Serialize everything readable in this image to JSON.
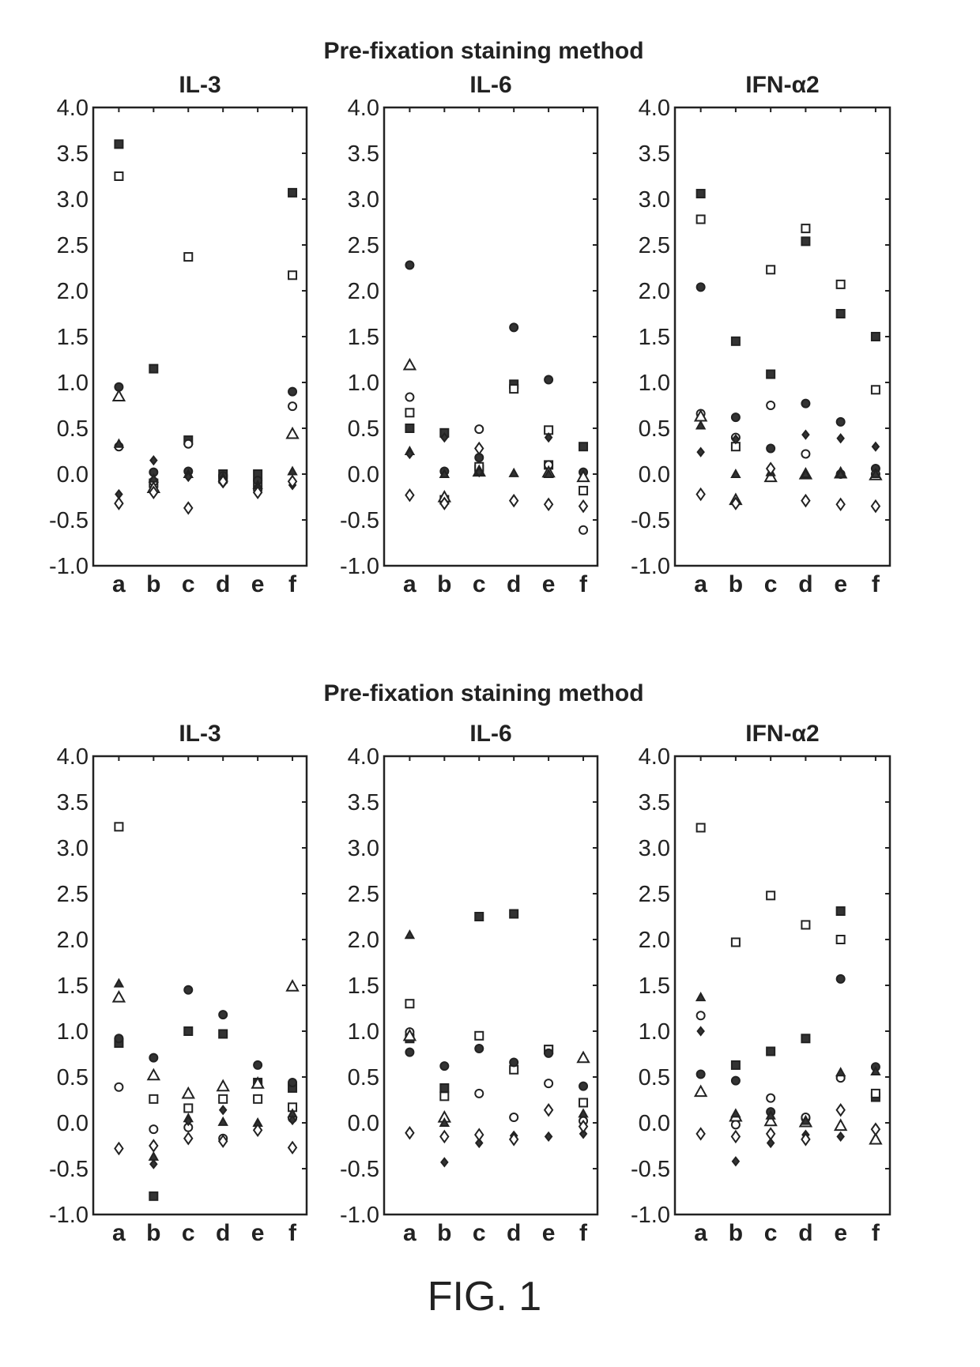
{
  "figure_label": "FIG. 1",
  "marker_legend": [
    "filled-square",
    "open-square",
    "filled-circle",
    "open-circle",
    "open-triangle",
    "filled-triangle",
    "filled-diamond",
    "open-diamond"
  ],
  "chart_data": [
    {
      "group_title": "Pre-fixation staining  method",
      "title": "IL-3",
      "type": "scatter",
      "categories": [
        "a",
        "b",
        "c",
        "d",
        "e",
        "f"
      ],
      "ylim": [
        -1.0,
        4.0
      ],
      "yticks": [
        "4.0",
        "3.5",
        "3.0",
        "2.5",
        "2.0",
        "1.5",
        "1.0",
        "0.5",
        "0.0",
        "-0.5",
        "-1.0"
      ],
      "series": [
        {
          "marker": "filled-square",
          "values": [
            3.6,
            1.15,
            0.37,
            0.0,
            0.0,
            3.07
          ]
        },
        {
          "marker": "open-square",
          "values": [
            3.25,
            -0.1,
            2.37,
            -0.05,
            -0.1,
            2.17
          ]
        },
        {
          "marker": "filled-circle",
          "values": [
            0.95,
            0.02,
            0.03,
            -0.02,
            -0.07,
            0.9
          ]
        },
        {
          "marker": "open-circle",
          "values": [
            0.3,
            -0.08,
            0.33,
            -0.07,
            -0.17,
            0.74
          ]
        },
        {
          "marker": "open-triangle",
          "values": [
            0.85,
            -0.15,
            null,
            null,
            null,
            0.44
          ]
        },
        {
          "marker": "filled-triangle",
          "values": [
            0.33,
            -0.05,
            0.0,
            -0.04,
            -0.12,
            0.03
          ]
        },
        {
          "marker": "filled-diamond",
          "values": [
            -0.22,
            0.15,
            -0.03,
            -0.1,
            -0.15,
            -0.12
          ]
        },
        {
          "marker": "open-diamond",
          "values": [
            -0.32,
            -0.2,
            -0.37,
            -0.08,
            -0.2,
            -0.08
          ]
        }
      ]
    },
    {
      "group_title": "Pre-fixation staining  method",
      "title": "IL-6",
      "type": "scatter",
      "categories": [
        "a",
        "b",
        "c",
        "d",
        "e",
        "f"
      ],
      "ylim": [
        -1.0,
        4.0
      ],
      "yticks": [
        "4.0",
        "3.5",
        "3.0",
        "2.5",
        "2.0",
        "1.5",
        "1.0",
        "0.5",
        "0.0",
        "-0.5",
        "-1.0"
      ],
      "series": [
        {
          "marker": "filled-square",
          "values": [
            0.5,
            0.45,
            0.05,
            0.98,
            0.1,
            0.3
          ]
        },
        {
          "marker": "open-square",
          "values": [
            0.67,
            -0.28,
            0.08,
            0.93,
            0.48,
            -0.18
          ]
        },
        {
          "marker": "filled-circle",
          "values": [
            2.28,
            0.03,
            0.18,
            1.6,
            1.03,
            0.02
          ]
        },
        {
          "marker": "open-circle",
          "values": [
            0.84,
            -0.3,
            0.49,
            null,
            0.1,
            -0.61
          ]
        },
        {
          "marker": "open-triangle",
          "values": [
            1.19,
            -0.25,
            0.03,
            null,
            0.02,
            -0.03
          ]
        },
        {
          "marker": "filled-triangle",
          "values": [
            0.25,
            0.0,
            0.02,
            0.01,
            0.0,
            null
          ]
        },
        {
          "marker": "filled-diamond",
          "values": [
            0.22,
            0.4,
            0.02,
            null,
            0.4,
            null
          ]
        },
        {
          "marker": "open-diamond",
          "values": [
            -0.23,
            -0.32,
            0.28,
            -0.29,
            -0.33,
            -0.35
          ]
        }
      ]
    },
    {
      "group_title": "Pre-fixation staining  method",
      "title": "IFN-α2",
      "type": "scatter",
      "categories": [
        "a",
        "b",
        "c",
        "d",
        "e",
        "f"
      ],
      "ylim": [
        -1.0,
        4.0
      ],
      "yticks": [
        "4.0",
        "3.5",
        "3.0",
        "2.5",
        "2.0",
        "1.5",
        "1.0",
        "0.5",
        "0.0",
        "-0.5",
        "-1.0"
      ],
      "series": [
        {
          "marker": "filled-square",
          "values": [
            3.06,
            1.45,
            1.09,
            2.54,
            1.75,
            1.5
          ]
        },
        {
          "marker": "open-square",
          "values": [
            2.78,
            0.3,
            2.23,
            2.68,
            2.07,
            0.92
          ]
        },
        {
          "marker": "filled-circle",
          "values": [
            2.04,
            0.62,
            0.28,
            0.77,
            0.57,
            0.06
          ]
        },
        {
          "marker": "open-circle",
          "values": [
            0.66,
            0.4,
            0.75,
            0.22,
            0.0,
            0.0
          ]
        },
        {
          "marker": "open-triangle",
          "values": [
            0.63,
            -0.28,
            -0.03,
            0.0,
            0.01,
            -0.01
          ]
        },
        {
          "marker": "filled-triangle",
          "values": [
            0.53,
            0.0,
            0.02,
            0.0,
            0.0,
            0.0
          ]
        },
        {
          "marker": "filled-diamond",
          "values": [
            0.24,
            0.38,
            0.05,
            0.43,
            0.39,
            0.3
          ]
        },
        {
          "marker": "open-diamond",
          "values": [
            -0.22,
            -0.32,
            0.06,
            -0.29,
            -0.33,
            -0.35
          ]
        }
      ]
    },
    {
      "group_title": "Pre-fixation staining  method",
      "title": "IL-3",
      "type": "scatter",
      "categories": [
        "a",
        "b",
        "c",
        "d",
        "e",
        "f"
      ],
      "ylim": [
        -1.0,
        4.0
      ],
      "yticks": [
        "4.0",
        "3.5",
        "3.0",
        "2.5",
        "2.0",
        "1.5",
        "1.0",
        "0.5",
        "0.0",
        "-0.5",
        "-1.0"
      ],
      "series": [
        {
          "marker": "filled-square",
          "values": [
            0.87,
            -0.8,
            1.0,
            0.97,
            0.44,
            0.38
          ]
        },
        {
          "marker": "open-square",
          "values": [
            3.23,
            0.26,
            0.16,
            0.26,
            0.26,
            0.17
          ]
        },
        {
          "marker": "filled-circle",
          "values": [
            0.92,
            0.71,
            1.45,
            1.18,
            0.63,
            0.44
          ]
        },
        {
          "marker": "open-circle",
          "values": [
            0.39,
            -0.07,
            -0.05,
            -0.17,
            0.43,
            0.05
          ]
        },
        {
          "marker": "open-triangle",
          "values": [
            1.37,
            0.52,
            0.32,
            0.4,
            0.43,
            1.49
          ]
        },
        {
          "marker": "filled-triangle",
          "values": [
            1.52,
            -0.37,
            0.05,
            0.01,
            0.0,
            0.1
          ]
        },
        {
          "marker": "filled-diamond",
          "values": [
            null,
            -0.45,
            0.02,
            0.14,
            -0.02,
            0.03
          ]
        },
        {
          "marker": "open-diamond",
          "values": [
            -0.28,
            -0.25,
            -0.17,
            -0.2,
            -0.08,
            -0.27
          ]
        }
      ]
    },
    {
      "group_title": "Pre-fixation staining  method",
      "title": "IL-6",
      "type": "scatter",
      "categories": [
        "a",
        "b",
        "c",
        "d",
        "e",
        "f"
      ],
      "ylim": [
        -1.0,
        4.0
      ],
      "yticks": [
        "4.0",
        "3.5",
        "3.0",
        "2.5",
        "2.0",
        "1.5",
        "1.0",
        "0.5",
        "0.0",
        "-0.5",
        "-1.0"
      ],
      "series": [
        {
          "marker": "filled-square",
          "values": [
            0.92,
            0.38,
            2.25,
            2.28,
            0.8,
            null
          ]
        },
        {
          "marker": "open-square",
          "values": [
            1.3,
            0.29,
            0.95,
            0.58,
            0.8,
            0.22
          ]
        },
        {
          "marker": "filled-circle",
          "values": [
            0.77,
            0.62,
            0.81,
            0.66,
            0.76,
            0.4
          ]
        },
        {
          "marker": "open-circle",
          "values": [
            0.99,
            null,
            0.32,
            0.06,
            0.43,
            0.02
          ]
        },
        {
          "marker": "open-triangle",
          "values": [
            0.95,
            0.06,
            null,
            null,
            null,
            0.71
          ]
        },
        {
          "marker": "filled-triangle",
          "values": [
            2.05,
            0.0,
            null,
            null,
            null,
            0.1
          ]
        },
        {
          "marker": "filled-diamond",
          "values": [
            null,
            -0.43,
            -0.22,
            -0.14,
            -0.15,
            -0.12
          ]
        },
        {
          "marker": "open-diamond",
          "values": [
            -0.11,
            -0.15,
            -0.13,
            -0.18,
            0.14,
            -0.04
          ]
        }
      ]
    },
    {
      "group_title": "Pre-fixation staining  method",
      "title": "IFN-α2",
      "type": "scatter",
      "categories": [
        "a",
        "b",
        "c",
        "d",
        "e",
        "f"
      ],
      "ylim": [
        -1.0,
        4.0
      ],
      "yticks": [
        "4.0",
        "3.5",
        "3.0",
        "2.5",
        "2.0",
        "1.5",
        "1.0",
        "0.5",
        "0.0",
        "-0.5",
        "-1.0"
      ],
      "series": [
        {
          "marker": "filled-square",
          "values": [
            null,
            0.63,
            0.78,
            0.92,
            2.31,
            0.28
          ]
        },
        {
          "marker": "open-square",
          "values": [
            3.22,
            1.97,
            2.48,
            2.16,
            2.0,
            0.32
          ]
        },
        {
          "marker": "filled-circle",
          "values": [
            0.53,
            0.46,
            0.12,
            0.05,
            1.57,
            0.61
          ]
        },
        {
          "marker": "open-circle",
          "values": [
            1.17,
            -0.02,
            0.27,
            0.06,
            0.49,
            null
          ]
        },
        {
          "marker": "open-triangle",
          "values": [
            0.34,
            0.07,
            0.02,
            0.01,
            -0.03,
            -0.18
          ]
        },
        {
          "marker": "filled-triangle",
          "values": [
            1.37,
            0.1,
            0.08,
            0.02,
            0.55,
            0.56
          ]
        },
        {
          "marker": "filled-diamond",
          "values": [
            1.0,
            -0.42,
            -0.22,
            -0.13,
            -0.15,
            null
          ]
        },
        {
          "marker": "open-diamond",
          "values": [
            -0.12,
            -0.15,
            -0.12,
            -0.18,
            0.14,
            -0.07
          ]
        }
      ]
    }
  ]
}
